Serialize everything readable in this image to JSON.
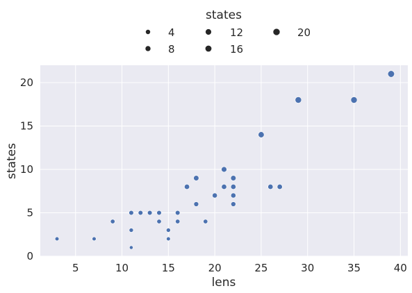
{
  "chart_data": {
    "type": "scatter",
    "title": "",
    "xlabel": "lens",
    "ylabel": "states",
    "xlim": [
      1.2,
      40.8
    ],
    "ylim": [
      0,
      22
    ],
    "xticks": [
      5,
      10,
      15,
      20,
      25,
      30,
      35,
      40
    ],
    "yticks": [
      0,
      5,
      10,
      15,
      20
    ],
    "grid": true,
    "color": "#4c72b0",
    "background": "#eaeaf2",
    "legend": {
      "title": "states",
      "placement": "top-center",
      "entries": [
        {
          "label": "4",
          "size": 4
        },
        {
          "label": "8",
          "size": 8
        },
        {
          "label": "12",
          "size": 12
        },
        {
          "label": "16",
          "size": 16
        },
        {
          "label": "20",
          "size": 20
        }
      ]
    },
    "points": [
      {
        "x": 3,
        "y": 2
      },
      {
        "x": 7,
        "y": 2
      },
      {
        "x": 9,
        "y": 4
      },
      {
        "x": 11,
        "y": 1
      },
      {
        "x": 11,
        "y": 3
      },
      {
        "x": 11,
        "y": 5
      },
      {
        "x": 12,
        "y": 5
      },
      {
        "x": 13,
        "y": 5
      },
      {
        "x": 14,
        "y": 4
      },
      {
        "x": 14,
        "y": 5
      },
      {
        "x": 15,
        "y": 2
      },
      {
        "x": 15,
        "y": 3
      },
      {
        "x": 16,
        "y": 4
      },
      {
        "x": 16,
        "y": 5
      },
      {
        "x": 17,
        "y": 8
      },
      {
        "x": 18,
        "y": 6
      },
      {
        "x": 18,
        "y": 9
      },
      {
        "x": 19,
        "y": 4
      },
      {
        "x": 20,
        "y": 7
      },
      {
        "x": 21,
        "y": 8
      },
      {
        "x": 21,
        "y": 10
      },
      {
        "x": 22,
        "y": 6
      },
      {
        "x": 22,
        "y": 7
      },
      {
        "x": 22,
        "y": 8
      },
      {
        "x": 22,
        "y": 9
      },
      {
        "x": 25,
        "y": 14
      },
      {
        "x": 26,
        "y": 8
      },
      {
        "x": 27,
        "y": 8
      },
      {
        "x": 29,
        "y": 18
      },
      {
        "x": 35,
        "y": 18
      },
      {
        "x": 39,
        "y": 21
      }
    ]
  }
}
